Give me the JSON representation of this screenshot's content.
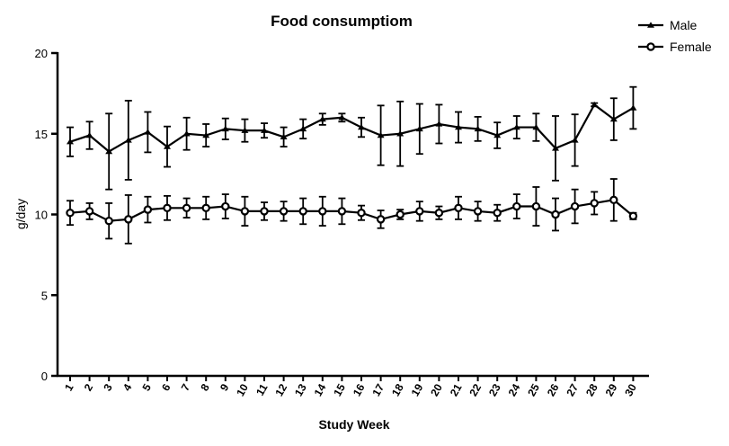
{
  "chart_data": {
    "type": "line",
    "title": "Food consumptiom",
    "xlabel": "Study Week",
    "ylabel": "g/day",
    "ylim": [
      0,
      20
    ],
    "yticks": [
      0,
      5,
      10,
      15,
      20
    ],
    "grid": false,
    "legend_position": "top-right",
    "categories": [
      "1",
      "2",
      "3",
      "4",
      "5",
      "6",
      "7",
      "8",
      "9",
      "10",
      "11",
      "12",
      "13",
      "14",
      "15",
      "16",
      "17",
      "18",
      "19",
      "20",
      "21",
      "22",
      "23",
      "24",
      "25",
      "26",
      "27",
      "28",
      "29",
      "30"
    ],
    "series": [
      {
        "name": "Male",
        "marker": "triangle",
        "values": [
          14.5,
          14.9,
          13.9,
          14.6,
          15.1,
          14.2,
          15.0,
          14.9,
          15.3,
          15.2,
          15.2,
          14.8,
          15.3,
          15.9,
          16.0,
          15.4,
          14.9,
          15.0,
          15.3,
          15.6,
          15.4,
          15.3,
          14.9,
          15.4,
          15.4,
          14.1,
          14.6,
          16.8,
          15.9,
          16.6
        ],
        "errors": [
          0.9,
          0.85,
          2.35,
          2.45,
          1.25,
          1.25,
          1.0,
          0.7,
          0.65,
          0.7,
          0.45,
          0.6,
          0.6,
          0.35,
          0.25,
          0.6,
          1.85,
          2.0,
          1.55,
          1.2,
          0.95,
          0.75,
          0.8,
          0.7,
          0.85,
          2.0,
          1.6,
          0.1,
          1.3,
          1.3
        ]
      },
      {
        "name": "Female",
        "marker": "circle",
        "values": [
          10.1,
          10.2,
          9.6,
          9.7,
          10.3,
          10.4,
          10.4,
          10.4,
          10.5,
          10.2,
          10.2,
          10.2,
          10.2,
          10.2,
          10.2,
          10.1,
          9.7,
          10.0,
          10.2,
          10.1,
          10.4,
          10.2,
          10.1,
          10.5,
          10.5,
          10.0,
          10.5,
          10.7,
          10.9,
          9.9
        ],
        "errors": [
          0.75,
          0.5,
          1.1,
          1.5,
          0.8,
          0.75,
          0.6,
          0.7,
          0.75,
          0.9,
          0.55,
          0.6,
          0.8,
          0.9,
          0.8,
          0.45,
          0.55,
          0.3,
          0.6,
          0.4,
          0.7,
          0.6,
          0.5,
          0.75,
          1.2,
          1.0,
          1.05,
          0.7,
          1.3,
          0.2
        ]
      }
    ]
  }
}
